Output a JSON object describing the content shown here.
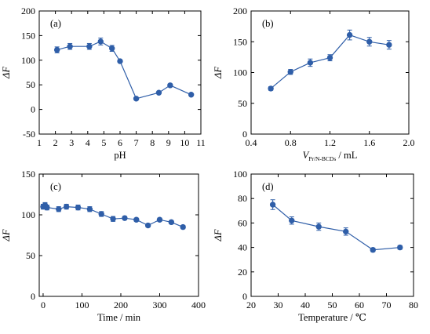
{
  "colors": {
    "series": "#2f5ea8",
    "axis": "#000000",
    "background": "#ffffff"
  },
  "chart_data": [
    {
      "panel": "(a)",
      "type": "line",
      "title": "",
      "xlabel": "pH",
      "ylabel": "ΔF",
      "xlim": [
        1,
        11
      ],
      "ylim": [
        -50,
        200
      ],
      "xticks": [
        1,
        2,
        3,
        4,
        5,
        6,
        7,
        8,
        9,
        10,
        11
      ],
      "yticks": [
        -50,
        0,
        50,
        100,
        150,
        200
      ],
      "series": [
        {
          "x": [
            2.1,
            2.9,
            4.1,
            4.8,
            5.5,
            6.0,
            7.0,
            8.4,
            9.1,
            10.4
          ],
          "y": [
            121,
            128,
            128,
            138,
            124,
            98,
            22,
            34,
            49,
            30
          ],
          "err": [
            6,
            6,
            6,
            7,
            6,
            3,
            2,
            2,
            3,
            2
          ]
        }
      ]
    },
    {
      "panel": "(b)",
      "type": "line",
      "title": "",
      "xlabel": "V",
      "xlabel_sub": "Pr/N-BCDs",
      "xlabel_unit": " / mL",
      "ylabel": "ΔF",
      "xlim": [
        0.4,
        2.0
      ],
      "ylim": [
        0,
        200
      ],
      "xticks": [
        0.4,
        0.8,
        1.2,
        1.6,
        2.0
      ],
      "xtick_labels": [
        "0.4",
        "0.8",
        "1.2",
        "1.6",
        "2.0"
      ],
      "yticks": [
        0,
        50,
        100,
        150,
        200
      ],
      "series": [
        {
          "x": [
            0.6,
            0.8,
            1.0,
            1.2,
            1.4,
            1.6,
            1.8
          ],
          "y": [
            74,
            101,
            116,
            124,
            161,
            150,
            145
          ],
          "err": [
            3,
            4,
            6,
            5,
            8,
            7,
            7
          ]
        }
      ]
    },
    {
      "panel": "(c)",
      "type": "line",
      "title": "",
      "xlabel": "Time / min",
      "ylabel": "ΔF",
      "xlim": [
        -10,
        400
      ],
      "ylim": [
        0,
        150
      ],
      "xticks": [
        0,
        100,
        200,
        300,
        400
      ],
      "yticks": [
        0,
        50,
        100,
        150
      ],
      "series": [
        {
          "x": [
            0,
            5,
            10,
            40,
            60,
            90,
            120,
            150,
            180,
            210,
            240,
            270,
            300,
            330,
            360
          ],
          "y": [
            110,
            112,
            109,
            107,
            110,
            109,
            107,
            101,
            95,
            96,
            94,
            87,
            94,
            91,
            85
          ],
          "err": [
            3,
            3,
            3,
            3,
            3,
            3,
            3,
            3,
            3,
            2,
            2,
            2,
            2,
            2,
            2
          ]
        }
      ]
    },
    {
      "panel": "(d)",
      "type": "line",
      "title": "",
      "xlabel": "Temperature / ℃",
      "ylabel": "ΔF",
      "xlim": [
        20,
        80
      ],
      "ylim": [
        0,
        100
      ],
      "xticks": [
        20,
        30,
        40,
        50,
        60,
        70,
        80
      ],
      "yticks": [
        0,
        20,
        40,
        60,
        80,
        100
      ],
      "series": [
        {
          "x": [
            28,
            35,
            45,
            55,
            65,
            75
          ],
          "y": [
            75,
            62,
            57,
            53,
            38,
            40
          ],
          "err": [
            4,
            3,
            3,
            3,
            1.5,
            1.5
          ]
        }
      ]
    }
  ]
}
